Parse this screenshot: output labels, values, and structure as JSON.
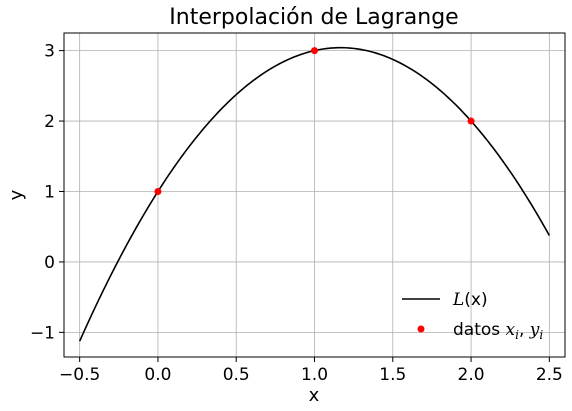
{
  "chart_data": {
    "type": "line",
    "title": "Interpolación de Lagrange",
    "xlabel": "x",
    "ylabel": "y",
    "xlim": [
      -0.6,
      2.6
    ],
    "ylim": [
      -1.35,
      3.25
    ],
    "x_ticks": [
      -0.5,
      0.0,
      0.5,
      1.0,
      1.5,
      2.0,
      2.5
    ],
    "x_tick_labels": [
      "−0.5",
      "0.0",
      "0.5",
      "1.0",
      "1.5",
      "2.0",
      "2.5"
    ],
    "y_ticks": [
      -1,
      0,
      1,
      2,
      3
    ],
    "y_tick_labels": [
      "−1",
      "0",
      "1",
      "2",
      "3"
    ],
    "grid": true,
    "legend_position": "lower-right",
    "series": [
      {
        "name": "L(x)",
        "kind": "line",
        "color": "#000000",
        "x": [
          -0.5,
          -0.25,
          0.0,
          0.25,
          0.5,
          0.75,
          1.0,
          1.25,
          1.5,
          1.75,
          2.0,
          2.25,
          2.5
        ],
        "y": [
          -1.125,
          0.03125,
          1.0,
          1.78125,
          2.375,
          2.78125,
          3.0,
          3.03125,
          2.875,
          2.53125,
          2.0,
          1.28125,
          0.375
        ]
      },
      {
        "name": "datos x_i, y_i",
        "kind": "scatter",
        "color": "#ff0000",
        "x": [
          0.0,
          1.0,
          2.0
        ],
        "y": [
          1.0,
          3.0,
          2.0
        ]
      }
    ],
    "legend": [
      {
        "prefix": "",
        "math_main": "L",
        "math_rest": "(x)"
      },
      {
        "prefix": "datos ",
        "math_main": "x",
        "sub1": "i",
        "sep": ", ",
        "math_main2": "y",
        "sub2": "i"
      }
    ]
  }
}
